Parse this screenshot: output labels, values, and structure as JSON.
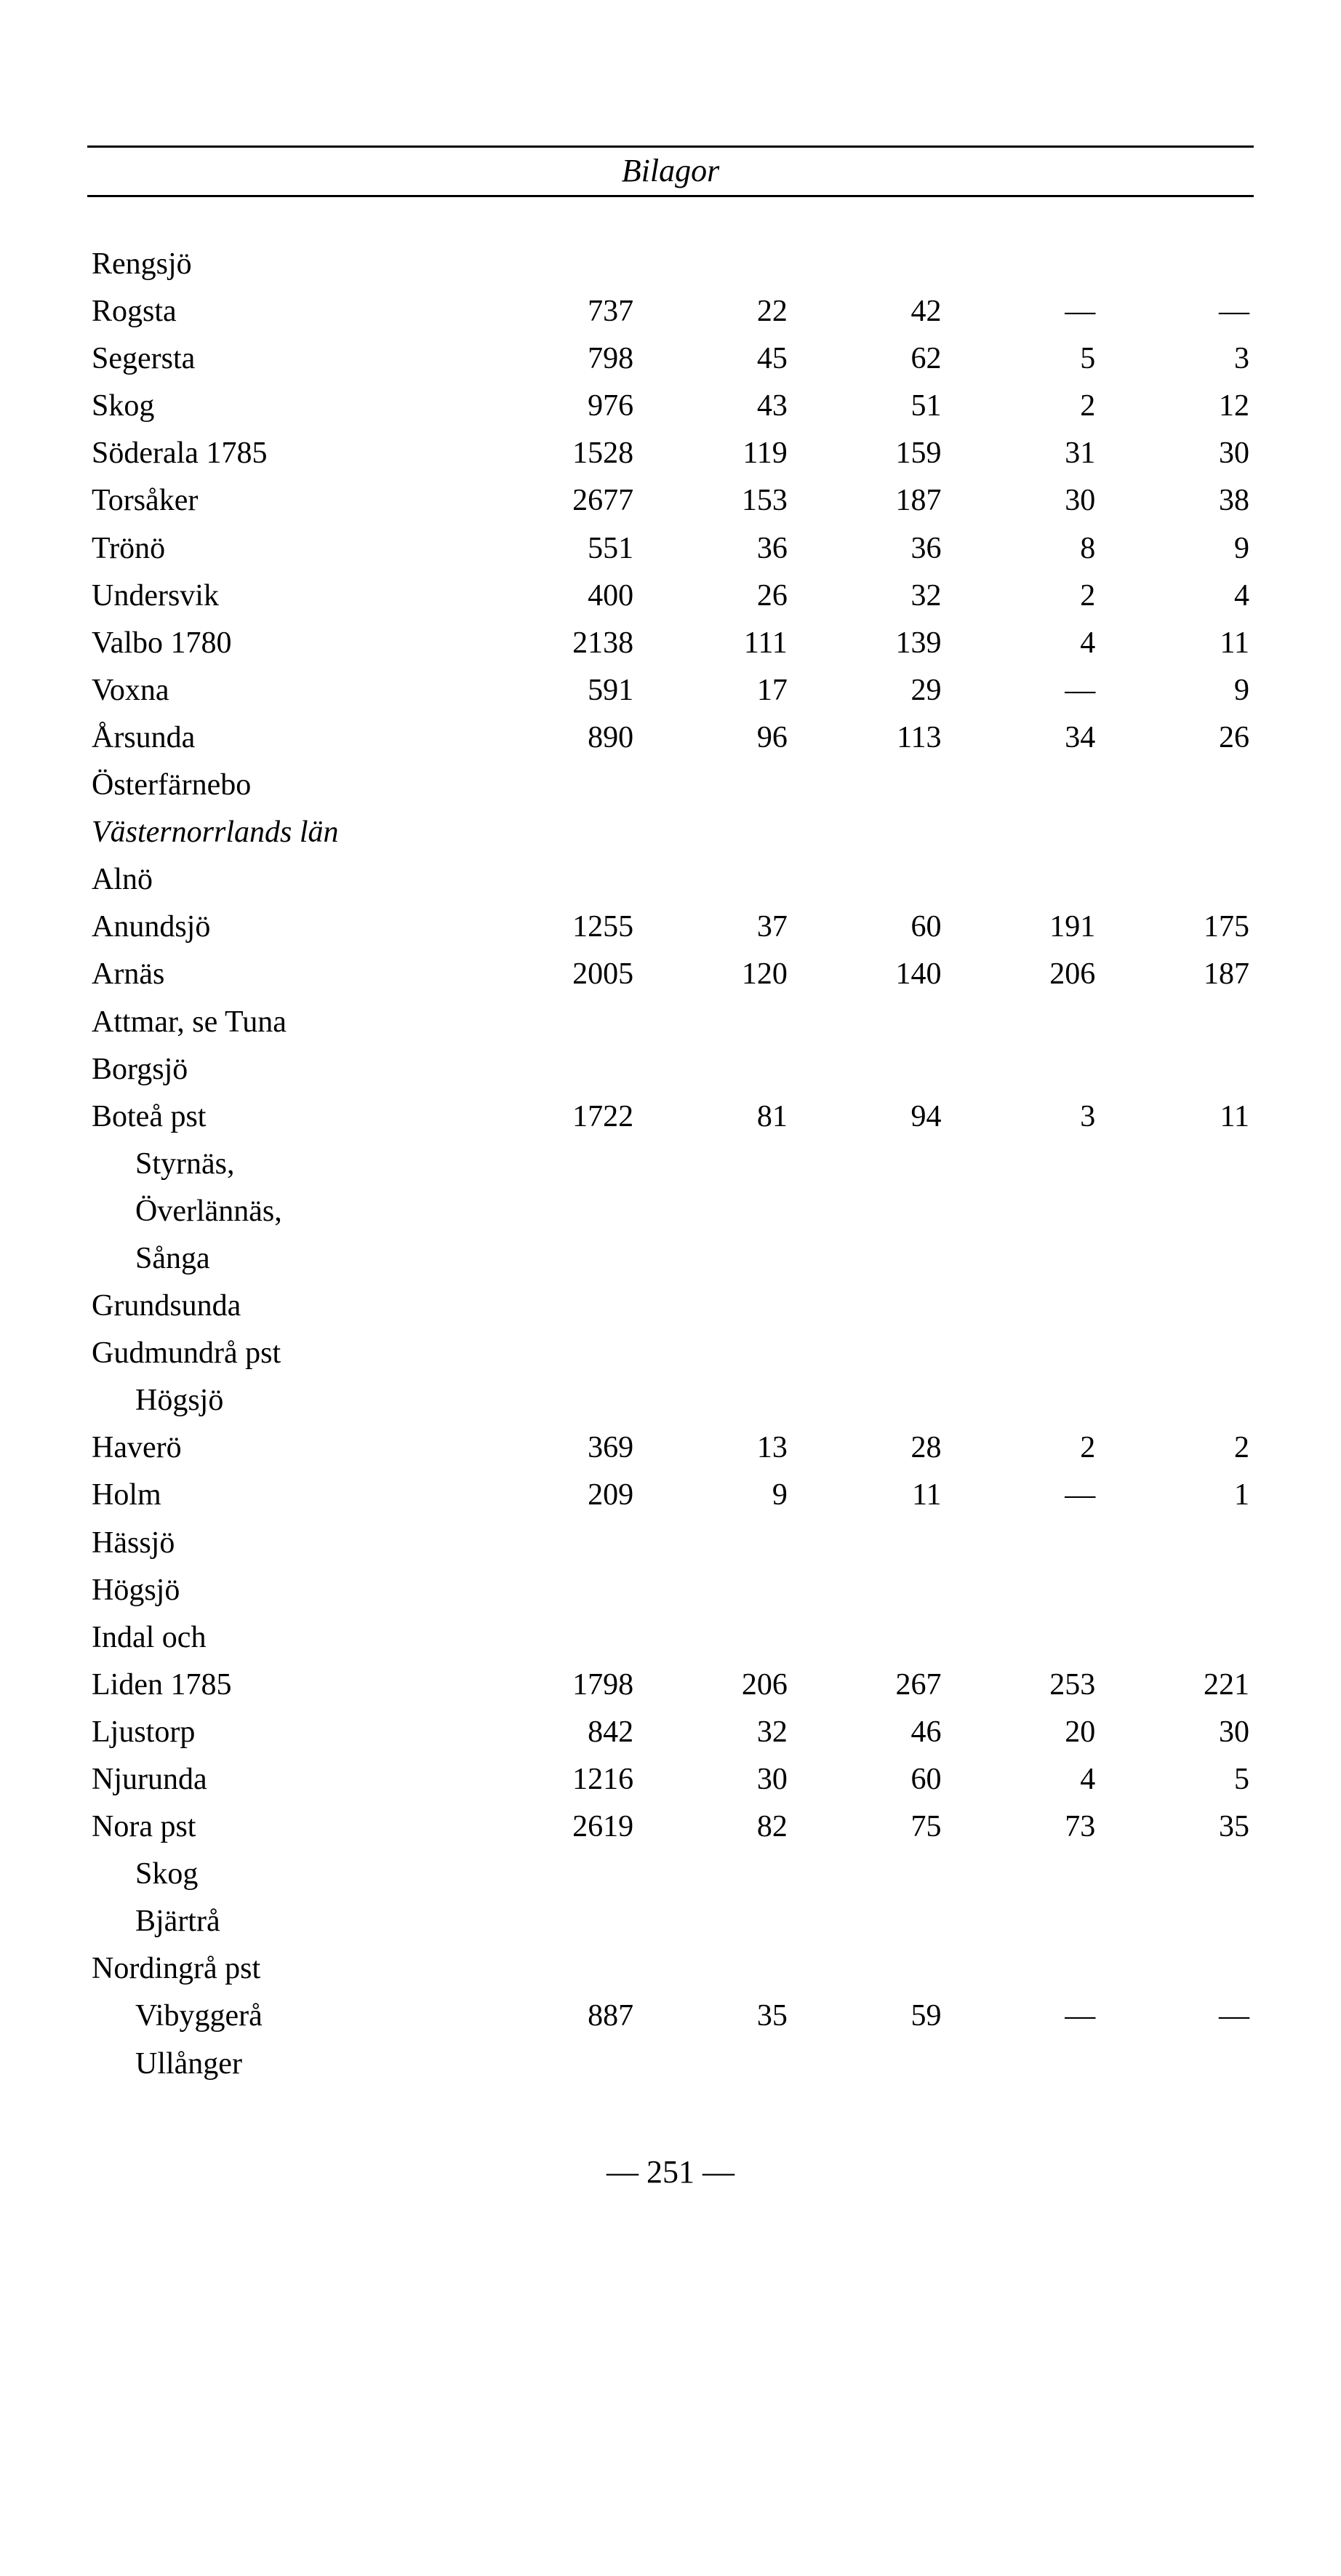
{
  "header_title": "Bilagor",
  "page_number_text": "— 251 —",
  "dash": "—",
  "columns_count": 5,
  "rows": [
    {
      "name": "Rengsjö"
    },
    {
      "name": "Rogsta",
      "c1": "737",
      "c2": "22",
      "c3": "42",
      "c4": "—",
      "c5": "—"
    },
    {
      "name": "Segersta",
      "c1": "798",
      "c2": "45",
      "c3": "62",
      "c4": "5",
      "c5": "3"
    },
    {
      "name": "Skog",
      "c1": "976",
      "c2": "43",
      "c3": "51",
      "c4": "2",
      "c5": "12"
    },
    {
      "name": "Söderala 1785",
      "c1": "1528",
      "c2": "119",
      "c3": "159",
      "c4": "31",
      "c5": "30"
    },
    {
      "name": "Torsåker",
      "c1": "2677",
      "c2": "153",
      "c3": "187",
      "c4": "30",
      "c5": "38"
    },
    {
      "name": "Trönö",
      "c1": "551",
      "c2": "36",
      "c3": "36",
      "c4": "8",
      "c5": "9"
    },
    {
      "name": "Undersvik",
      "c1": "400",
      "c2": "26",
      "c3": "32",
      "c4": "2",
      "c5": "4"
    },
    {
      "name": "Valbo 1780",
      "c1": "2138",
      "c2": "111",
      "c3": "139",
      "c4": "4",
      "c5": "11"
    },
    {
      "name": "Voxna",
      "c1": "591",
      "c2": "17",
      "c3": "29",
      "c4": "—",
      "c5": "9"
    },
    {
      "name": "Årsunda",
      "c1": "890",
      "c2": "96",
      "c3": "113",
      "c4": "34",
      "c5": "26"
    },
    {
      "name": "Österfärnebo"
    },
    {
      "section": "Västernorrlands län"
    },
    {
      "name": "Alnö"
    },
    {
      "name": "Anundsjö",
      "c1": "1255",
      "c2": "37",
      "c3": "60",
      "c4": "191",
      "c5": "175"
    },
    {
      "name": "Arnäs",
      "c1": "2005",
      "c2": "120",
      "c3": "140",
      "c4": "206",
      "c5": "187"
    },
    {
      "name": "Attmar, se Tuna"
    },
    {
      "name": "Borgsjö"
    },
    {
      "name": "Boteå pst",
      "sub": [
        "Styrnäs,",
        "Överlännäs,",
        "Sånga"
      ],
      "c1": "1722",
      "c2": "81",
      "c3": "94",
      "c4": "3",
      "c5": "11"
    },
    {
      "name": "Grundsunda"
    },
    {
      "name": "Gudmundrå pst",
      "sub": [
        "Högsjö"
      ]
    },
    {
      "name": "Haverö",
      "c1": "369",
      "c2": "13",
      "c3": "28",
      "c4": "2",
      "c5": "2"
    },
    {
      "name": "Holm",
      "c1": "209",
      "c2": "9",
      "c3": "11",
      "c4": "—",
      "c5": "1"
    },
    {
      "name": "Hässjö"
    },
    {
      "name": "Högsjö"
    },
    {
      "name": "Indal och"
    },
    {
      "name": "Liden 1785",
      "c1": "1798",
      "c2": "206",
      "c3": "267",
      "c4": "253",
      "c5": "221"
    },
    {
      "name": "Ljustorp",
      "c1": "842",
      "c2": "32",
      "c3": "46",
      "c4": "20",
      "c5": "30"
    },
    {
      "name": "Njurunda",
      "c1": "1216",
      "c2": "30",
      "c3": "60",
      "c4": "4",
      "c5": "5"
    },
    {
      "name": "Nora pst",
      "sub": [
        "Skog",
        "Bjärtrå"
      ],
      "c1": "2619",
      "c2": "82",
      "c3": "75",
      "c4": "73",
      "c5": "35"
    },
    {
      "name": "Nordingrå pst",
      "sub": [
        "Vibyggerå",
        "Ullånger"
      ],
      "sub_values_on": 0,
      "c1": "887",
      "c2": "35",
      "c3": "59",
      "c4": "—",
      "c5": "—"
    }
  ]
}
